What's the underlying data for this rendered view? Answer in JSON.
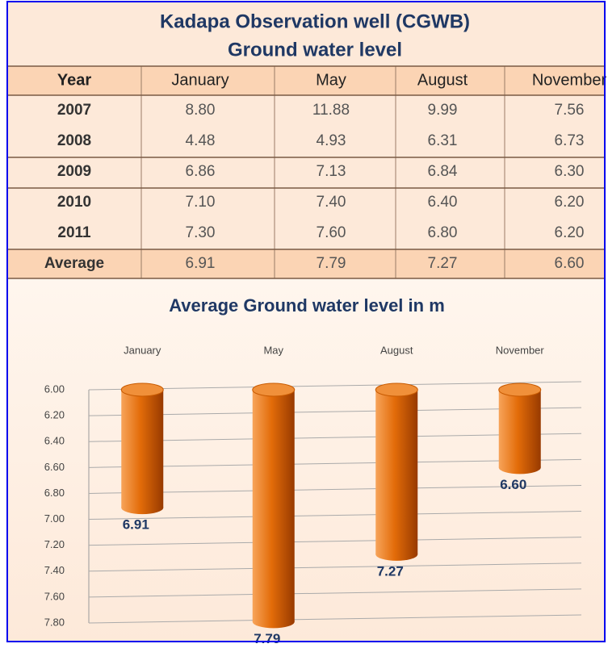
{
  "table": {
    "title": [
      "Kadapa Observation well (CGWB)",
      "Ground water level"
    ],
    "header": [
      "Year",
      "January",
      "May",
      "August",
      "November"
    ],
    "rows": [
      [
        "2007",
        "8.80",
        "11.88",
        "9.99",
        "7.56"
      ],
      [
        "2008",
        "4.48",
        "4.93",
        "6.31",
        "6.73"
      ],
      [
        "2009",
        "6.86",
        "7.13",
        "6.84",
        "6.30"
      ],
      [
        "2010",
        "7.10",
        "7.40",
        "6.40",
        "6.20"
      ],
      [
        "2011",
        "7.30",
        "7.60",
        "6.80",
        "6.20"
      ],
      [
        "Average",
        "6.91",
        "7.79",
        "7.27",
        "6.60"
      ]
    ]
  },
  "chart_data": {
    "type": "bar",
    "title": "Average Ground water level in m",
    "categories": [
      "January",
      "May",
      "August",
      "November"
    ],
    "values": [
      6.91,
      7.79,
      7.27,
      6.6
    ],
    "value_labels": [
      "6.91",
      "7.79",
      "7.27",
      "6.60"
    ],
    "color": "#e36c09",
    "inverted": true,
    "grid": true,
    "ylim": [
      6,
      7.8
    ],
    "yticks": [
      {
        "value": 6,
        "label": "6.00"
      },
      {
        "value": 6.2,
        "label": "6.20"
      },
      {
        "value": 6.4,
        "label": "6.40"
      },
      {
        "value": 6.6,
        "label": "6.60"
      },
      {
        "value": 6.8,
        "label": "6.80"
      },
      {
        "value": 7,
        "label": "7.00"
      },
      {
        "value": 7.2,
        "label": "7.20"
      },
      {
        "value": 7.4,
        "label": "7.40"
      },
      {
        "value": 7.6,
        "label": "7.60"
      },
      {
        "value": 7.8,
        "label": "7.80"
      }
    ]
  }
}
